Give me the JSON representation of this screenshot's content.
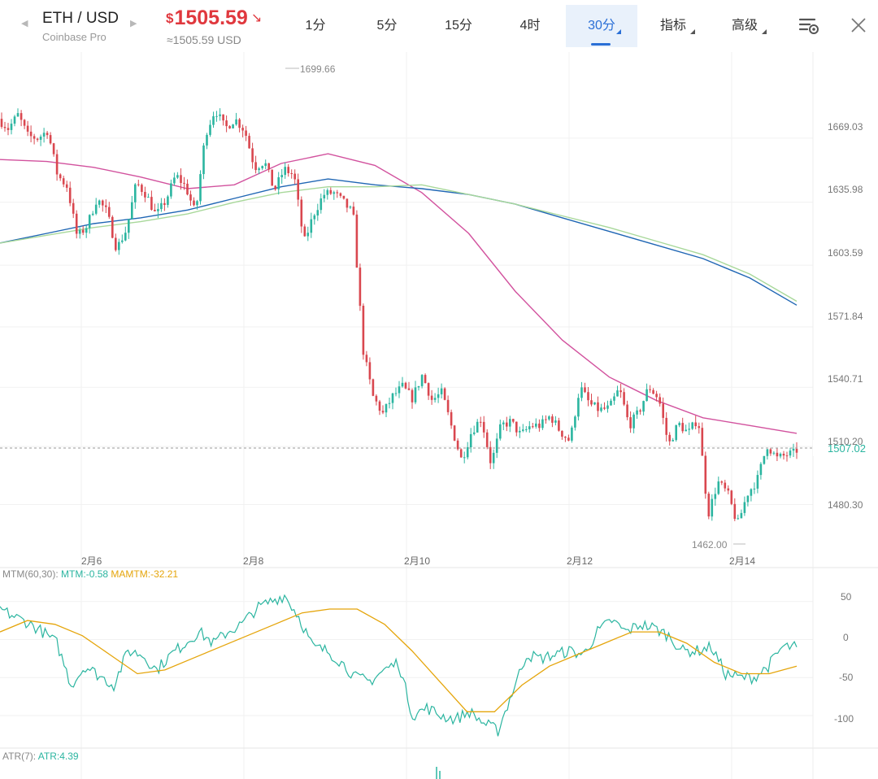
{
  "header": {
    "pair": "ETH / USD",
    "exchange": "Coinbase Pro",
    "prev_arrow": "◀",
    "next_arrow": "▶",
    "price_currency": "$",
    "price": "1505.59",
    "price_direction_glyph": "↘",
    "price_approx": "≈1505.59 USD",
    "price_color": "#e0383e"
  },
  "timeframes": [
    {
      "label": "1分",
      "active": false
    },
    {
      "label": "5分",
      "active": false
    },
    {
      "label": "15分",
      "active": false
    },
    {
      "label": "4时",
      "active": false
    },
    {
      "label": "30分",
      "active": true
    }
  ],
  "menus": {
    "indicators": "指标",
    "advanced": "高级"
  },
  "icons": {
    "settings": "chart-settings-icon",
    "close": "close-icon"
  },
  "chart_data": [
    {
      "type": "candlestick",
      "y_axis_labels": [
        "1669.03",
        "1635.98",
        "1603.59",
        "1571.84",
        "1540.71",
        "1510.20",
        "1480.30"
      ],
      "ylim": [
        1460,
        1705
      ],
      "x_axis_labels": [
        "2月6",
        "2月8",
        "2月10",
        "2月12",
        "2月14"
      ],
      "current_price_label": "1507.02",
      "current_price": 1507.02,
      "high_annotation": "1699.66",
      "low_annotation": "1462.00",
      "series": [
        {
          "color": "#d2529e",
          "values": [
            1658,
            1657,
            1654,
            1649,
            1643,
            1645,
            1656,
            1661,
            1655,
            1641,
            1620,
            1590,
            1565,
            1546,
            1534,
            1525,
            1521,
            1517
          ]
        },
        {
          "color": "#1f66b4",
          "values": [
            1615,
            1620,
            1625,
            1628,
            1632,
            1638,
            1644,
            1648,
            1645,
            1643,
            1640,
            1635,
            1628,
            1621,
            1614,
            1607,
            1597,
            1583
          ]
        },
        {
          "color": "#a8d89a",
          "values": [
            1615,
            1619,
            1623,
            1626,
            1630,
            1636,
            1641,
            1644,
            1644,
            1645,
            1640,
            1635,
            1629,
            1623,
            1616,
            1609,
            1599,
            1585
          ]
        }
      ],
      "candles_path": [
        1679,
        1674,
        1681,
        1670,
        1669,
        1673,
        1650,
        1644,
        1618,
        1624,
        1638,
        1631,
        1612,
        1622,
        1646,
        1640,
        1629,
        1637,
        1650,
        1644,
        1630,
        1671,
        1684,
        1674,
        1679,
        1673,
        1654,
        1657,
        1642,
        1653,
        1650,
        1615,
        1630,
        1640,
        1641,
        1636,
        1630,
        1560,
        1536,
        1527,
        1536,
        1541,
        1535,
        1547,
        1534,
        1538,
        1520,
        1503,
        1518,
        1525,
        1501,
        1521,
        1523,
        1516,
        1521,
        1521,
        1526,
        1518,
        1513,
        1541,
        1532,
        1529,
        1530,
        1540,
        1521,
        1528,
        1541,
        1535,
        1511,
        1522,
        1517,
        1525,
        1475,
        1492,
        1486,
        1470,
        1486,
        1493,
        1511,
        1504,
        1506,
        1507
      ]
    },
    {
      "type": "line",
      "title": "MTM(60,30):",
      "legend": [
        {
          "name": "MTM",
          "value": "-0.58",
          "color": "#2bb5a0"
        },
        {
          "name": "MAMTM",
          "value": "-32.21",
          "color": "#e5a50b"
        }
      ],
      "y_axis_labels": [
        "50",
        "0",
        "-50",
        "-100"
      ],
      "ylim": [
        -130,
        70
      ],
      "series": [
        {
          "name": "MTM",
          "color": "#2bb5a0",
          "values": [
            40,
            30,
            22,
            10,
            -5,
            -60,
            -35,
            -48,
            -60,
            -15,
            -20,
            -40,
            -20,
            -5,
            10,
            -5,
            10,
            20,
            40,
            50,
            58,
            30,
            -10,
            -15,
            -30,
            -50,
            -55,
            -40,
            -30,
            -100,
            -90,
            -100,
            -105,
            -95,
            -110,
            -120,
            -70,
            -20,
            -25,
            -20,
            -15,
            -20,
            10,
            25,
            10,
            20,
            15,
            5,
            -15,
            -15,
            -10,
            -45,
            -50,
            -50,
            -35,
            -10,
            -10
          ]
        },
        {
          "name": "MAMTM",
          "color": "#e5a50b",
          "values": [
            10,
            25,
            20,
            5,
            -20,
            -45,
            -40,
            -25,
            -10,
            5,
            20,
            35,
            40,
            40,
            20,
            -15,
            -55,
            -95,
            -95,
            -60,
            -35,
            -20,
            -5,
            10,
            10,
            -5,
            -30,
            -45,
            -45,
            -35
          ]
        }
      ]
    },
    {
      "type": "line",
      "title": "ATR(7):",
      "legend": [
        {
          "name": "ATR",
          "value": "4.39",
          "color": "#2bb5a0"
        }
      ]
    }
  ]
}
